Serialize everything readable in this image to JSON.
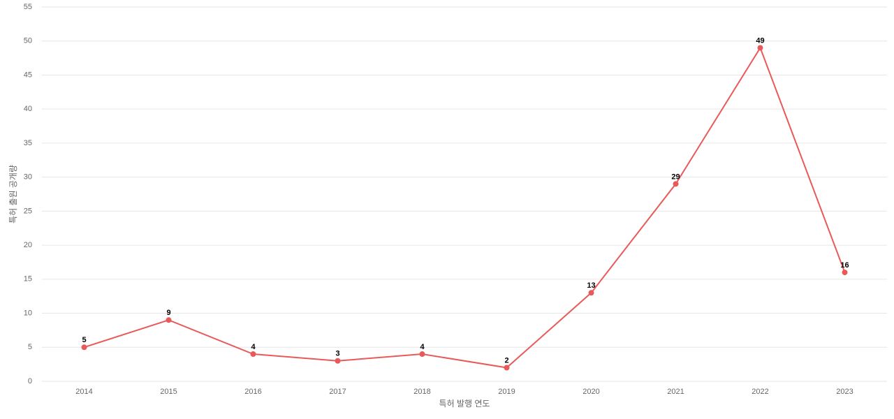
{
  "chart_data": {
    "type": "line",
    "x_label": "특허 발행 연도",
    "y_label": "특허 출원 공개량",
    "categories": [
      "2014",
      "2015",
      "2016",
      "2017",
      "2018",
      "2019",
      "2020",
      "2021",
      "2022",
      "2023"
    ],
    "series": [
      {
        "color": "#e85a5a",
        "values": [
          5,
          9,
          4,
          3,
          4,
          2,
          13,
          29,
          49,
          16
        ]
      }
    ],
    "ylim": [
      0,
      55
    ],
    "yticks": [
      0,
      5,
      10,
      15,
      20,
      25,
      30,
      35,
      40,
      45,
      50,
      55
    ],
    "grid": true
  }
}
